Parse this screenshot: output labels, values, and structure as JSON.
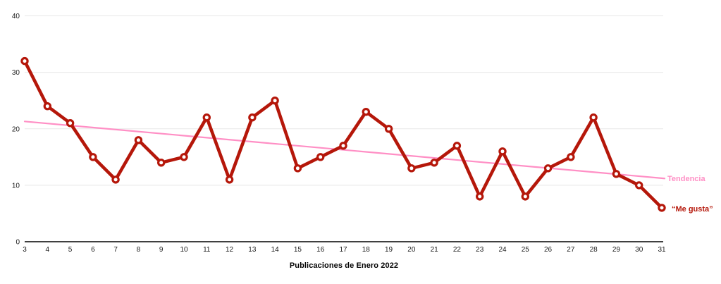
{
  "chart": {
    "xlabel": "Publicaciones de Enero 2022",
    "series_label": "“Me gusta”",
    "trend_label": "Tendencia"
  },
  "chart_data": {
    "type": "line",
    "title": "",
    "xlabel": "Publicaciones de Enero 2022",
    "ylabel": "",
    "x": [
      3,
      4,
      5,
      6,
      7,
      8,
      9,
      10,
      11,
      12,
      13,
      14,
      15,
      16,
      17,
      18,
      19,
      20,
      21,
      22,
      23,
      24,
      25,
      26,
      27,
      28,
      29,
      30,
      31
    ],
    "series": [
      {
        "name": "“Me gusta”",
        "color": "#b5170a",
        "marker_fill": "#ffffff",
        "values": [
          32,
          24,
          21,
          15,
          11,
          18,
          14,
          15,
          22,
          11,
          22,
          25,
          13,
          15,
          17,
          23,
          20,
          13,
          14,
          17,
          8,
          16,
          8,
          13,
          15,
          22,
          12,
          10,
          6
        ]
      }
    ],
    "trend": {
      "name": "Tendencia",
      "color": "#ff8fc5",
      "start_value": 21.3,
      "end_value": 11.2
    },
    "ylim": [
      0,
      40
    ],
    "yticks": [
      0,
      10,
      20,
      30,
      40
    ],
    "grid": true,
    "legend_position": "right-inline",
    "colors": {
      "grid": "#e7e7e7",
      "axis": "#000000",
      "tick_text": "#1a1a1a"
    }
  }
}
